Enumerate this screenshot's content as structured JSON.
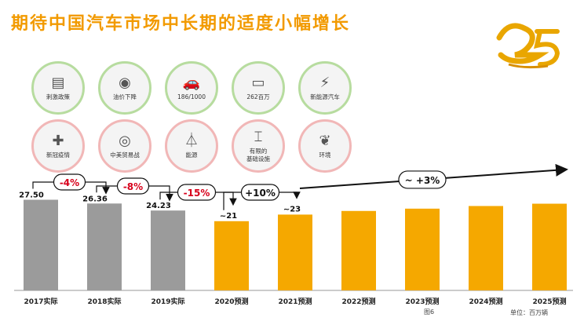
{
  "title": "期待中国汽车市场中长期的适度小幅增长",
  "logo_text": "25",
  "icons_row1": [
    {
      "label": "刺激政策",
      "icon": "document-icon"
    },
    {
      "label": "油价下降",
      "icon": "coins-icon"
    },
    {
      "label": "186/1000",
      "icon": "car-person-icon"
    },
    {
      "label": "262百万",
      "icon": "traffic-jam-icon"
    },
    {
      "label": "新能源汽车",
      "icon": "ev-plug-icon"
    }
  ],
  "icons_row2": [
    {
      "label": "新冠疫情",
      "icon": "medical-cross-icon"
    },
    {
      "label": "中美贸易战",
      "icon": "target-icon"
    },
    {
      "label": "能源",
      "icon": "power-tower-icon"
    },
    {
      "label": "有限的\n基础设施",
      "icon": "construction-crane-icon"
    },
    {
      "label": "环境",
      "icon": "leaf-icon"
    }
  ],
  "colors": {
    "actual": "#9b9b9b",
    "forecast": "#f5a800",
    "title": "#f29a00",
    "green_ring": "#b7dc9f",
    "red_ring": "#f1b7b7",
    "badge_red": "#d7001b"
  },
  "chart_data": {
    "type": "bar",
    "categories": [
      "2017实际",
      "2018实际",
      "2019实际",
      "2020预测",
      "2021预测",
      "2022预测",
      "2023预测",
      "2024预测",
      "2025预测"
    ],
    "values": [
      27.5,
      26.36,
      24.23,
      21,
      23,
      24.1,
      24.8,
      25.6,
      26.3
    ],
    "value_labels": [
      "27.50",
      "26.36",
      "24.23",
      "~21",
      "~23",
      "",
      "",
      "",
      ""
    ],
    "kind": [
      "actual",
      "actual",
      "actual",
      "forecast",
      "forecast",
      "forecast",
      "forecast",
      "forecast",
      "forecast"
    ],
    "changes": [
      {
        "label": "-4%",
        "from": 0,
        "to": 1
      },
      {
        "label": "-8%",
        "from": 1,
        "to": 2
      },
      {
        "label": "-15%",
        "from": 2,
        "to": 3
      },
      {
        "label": "+10%",
        "from": 3,
        "to": 4
      },
      {
        "label": "~ +3%",
        "from": 4,
        "to": 8
      }
    ],
    "figure_label": "图6",
    "unit_label": "单位：百万辆"
  }
}
